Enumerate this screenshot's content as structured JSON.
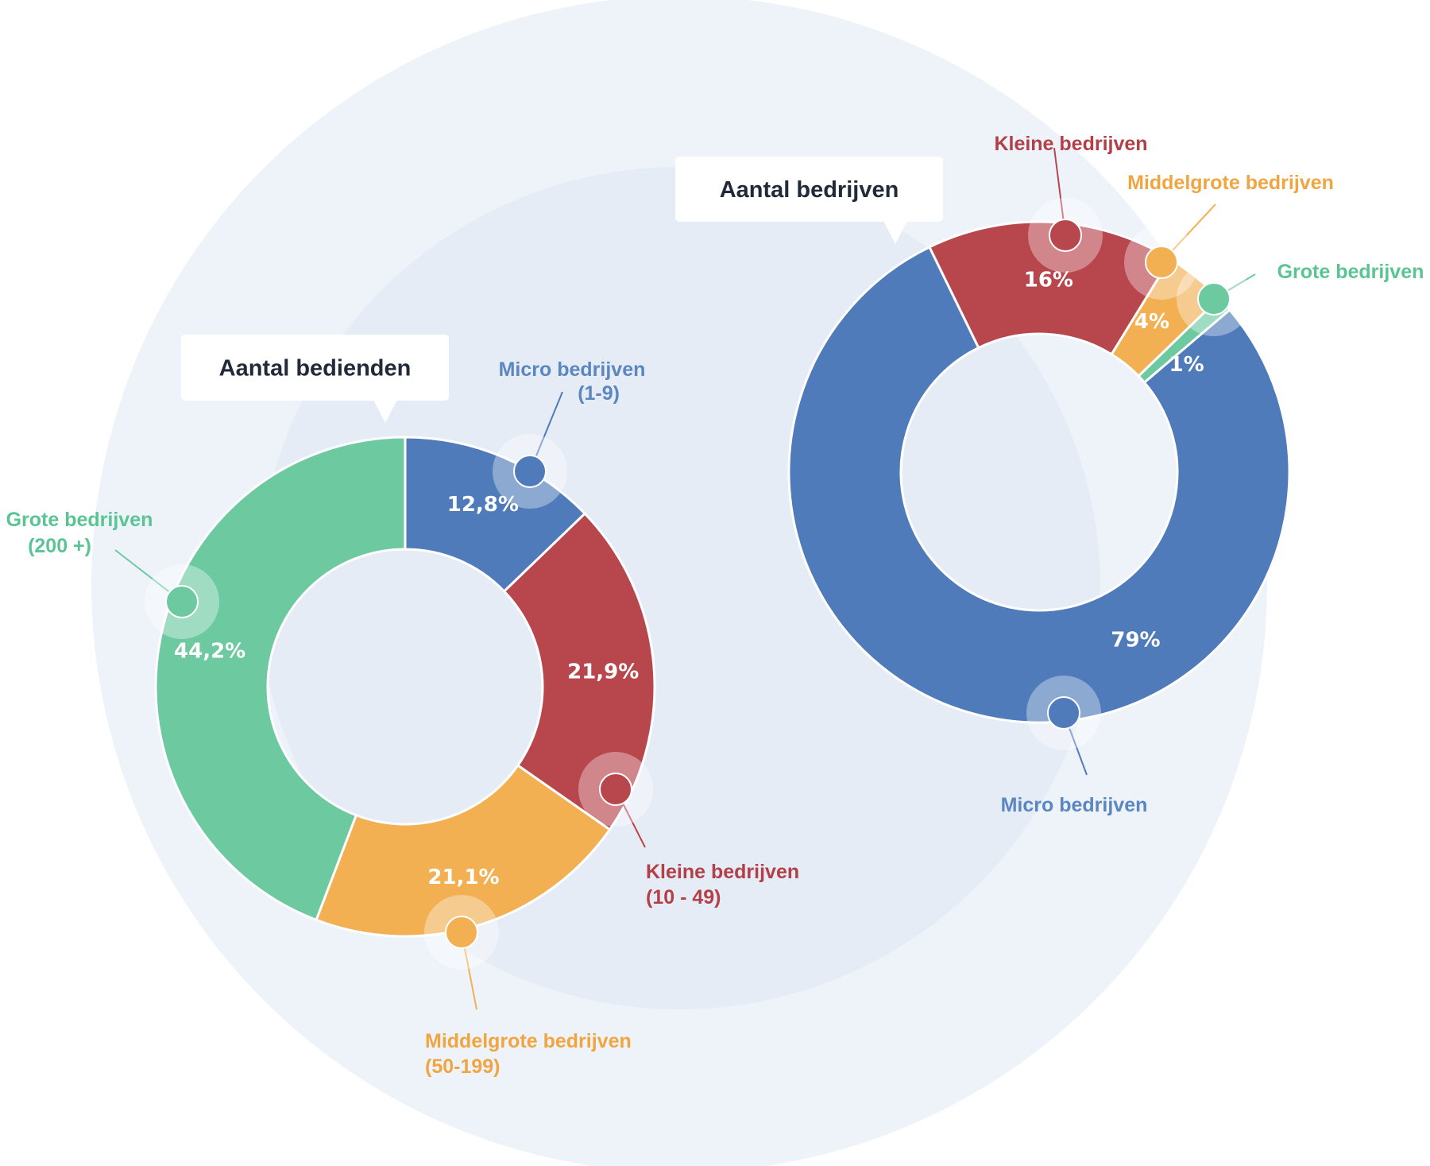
{
  "colors": {
    "micro": "#4F7BBB",
    "kleine": "#B8464D",
    "middelgrote": "#F2B053",
    "grote": "#6CC9A0",
    "micro_label": "#5A86C2",
    "kleine_label": "#B33F47",
    "middelgrote_label": "#F0A540",
    "grote_label": "#5AC495",
    "background_outer": "#EEF3FA",
    "background_inner": "#E6ECF6",
    "title_text": "#222A3A"
  },
  "chart_data": [
    {
      "type": "pie",
      "title": "Aantal bedienden",
      "slices": [
        {
          "key": "micro",
          "label": "Micro bedrijven",
          "sublabel": "(1-9)",
          "value": 12.8,
          "value_label": "12,8%"
        },
        {
          "key": "kleine",
          "label": "Kleine bedrijven",
          "sublabel": "(10 - 49)",
          "value": 21.9,
          "value_label": "21,9%"
        },
        {
          "key": "middelgrote",
          "label": "Middelgrote bedrijven",
          "sublabel": "(50-199)",
          "value": 21.1,
          "value_label": "21,1%"
        },
        {
          "key": "grote",
          "label": "Grote bedrijven",
          "sublabel": "(200 +)",
          "value": 44.2,
          "value_label": "44,2%"
        }
      ]
    },
    {
      "type": "pie",
      "title": "Aantal bedrijven",
      "slices": [
        {
          "key": "micro",
          "label": "Micro bedrijven",
          "value": 79,
          "value_label": "79%"
        },
        {
          "key": "kleine",
          "label": "Kleine bedrijven",
          "value": 16,
          "value_label": "16%"
        },
        {
          "key": "middelgrote",
          "label": "Middelgrote bedrijven",
          "value": 4,
          "value_label": "4%"
        },
        {
          "key": "grote",
          "label": "Grote bedrijven",
          "value": 1,
          "value_label": "1%"
        }
      ]
    }
  ]
}
